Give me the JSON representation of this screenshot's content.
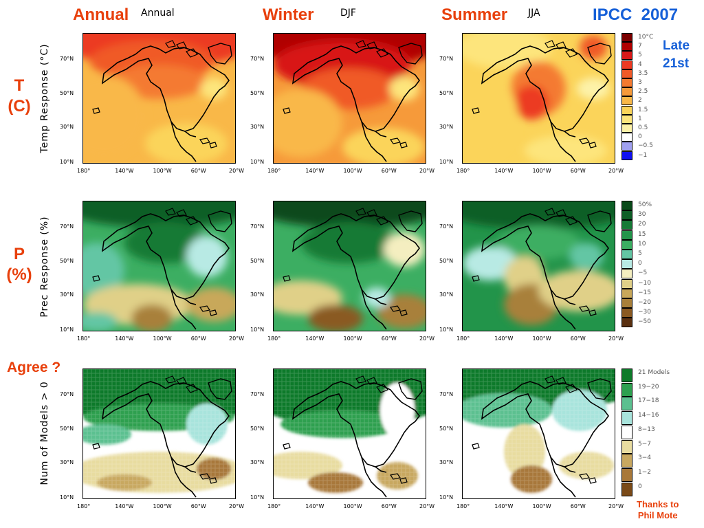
{
  "header": {
    "annual_red": "Annual",
    "annual_sub": "Annual",
    "winter_red": "Winter",
    "winter_sub": "DJF",
    "summer_red": "Summer",
    "summer_sub": "JJA",
    "source": "IPCC  2007",
    "period_line1": "Late",
    "period_line2": "21st"
  },
  "rows": [
    {
      "label_line1": "T",
      "label_line2": "(C)",
      "ylabel": "Temp  Response  (°C)"
    },
    {
      "label_line1": "P",
      "label_line2": "(%)",
      "ylabel": "Prec  Response  (%)"
    },
    {
      "label": "Agree ?",
      "ylabel": "Num  of  Models  >  0"
    }
  ],
  "axes": {
    "lat_ticks": [
      "70°N",
      "50°N",
      "30°N",
      "10°N"
    ],
    "lon_ticks": [
      "180°",
      "140°W",
      "100°W",
      "60°W",
      "20°W"
    ]
  },
  "legends": {
    "temperature": {
      "labels": [
        "10°C",
        "7",
        "5",
        "4",
        "3.5",
        "3",
        "2.5",
        "2",
        "1.5",
        "1",
        "0.5",
        "0",
        "−0.5",
        "−1"
      ],
      "colors": [
        "#7a0000",
        "#b00000",
        "#d81818",
        "#ec3a22",
        "#f05a28",
        "#f47a30",
        "#f69a3a",
        "#f9b848",
        "#fbd45a",
        "#fde57c",
        "#fdf2a8",
        "#ffffff",
        "#a0a0f0",
        "#1010f0"
      ]
    },
    "precipitation": {
      "labels": [
        "50%",
        "30",
        "20",
        "15",
        "10",
        "5",
        "0",
        "−5",
        "−10",
        "−15",
        "−20",
        "−30",
        "−50"
      ],
      "colors": [
        "#0a4a1a",
        "#0e5e26",
        "#167a36",
        "#22944a",
        "#3cae62",
        "#64c6a4",
        "#b8eae4",
        "#f4eec0",
        "#e0d088",
        "#c8a85a",
        "#a8803a",
        "#8a5a22",
        "#5a3010"
      ]
    },
    "agreement": {
      "labels": [
        "21 Models",
        "19−20",
        "17−18",
        "14−16",
        "8−13",
        "5−7",
        "3−4",
        "1−2",
        "0"
      ],
      "colors": [
        "#0e7a2a",
        "#2ea050",
        "#5cc090",
        "#a8e4dc",
        "#ffffff",
        "#e8dca0",
        "#c8a860",
        "#a8783a",
        "#7a4a18"
      ]
    }
  },
  "credit": {
    "line1": "Thanks to",
    "line2": "Phil Mote"
  }
}
